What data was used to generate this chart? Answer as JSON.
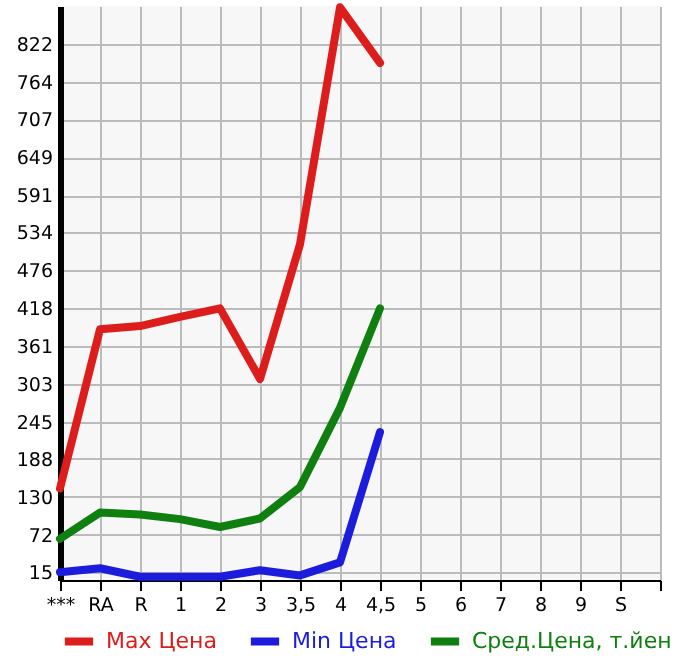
{
  "chart_data": {
    "type": "line",
    "categories": [
      "***",
      "RA",
      "R",
      "1",
      "2",
      "3",
      "3,5",
      "4",
      "4,5",
      "5",
      "6",
      "7",
      "8",
      "9",
      "S",
      null
    ],
    "series": [
      {
        "name": "Max Цена",
        "color": "#dd1c1c",
        "values": [
          143,
          386,
          391,
          405,
          418,
          310,
          516,
          878,
          793,
          null,
          null,
          null,
          null,
          null,
          null,
          null
        ]
      },
      {
        "name": "Min Цена",
        "color": "#1c1cdd",
        "values": [
          15,
          21,
          8,
          8,
          8,
          18,
          10,
          30,
          229,
          null,
          null,
          null,
          null,
          null,
          null,
          null
        ]
      },
      {
        "name": "Сред.Цена, т.йен",
        "color": "#0f7f0f",
        "values": [
          66,
          106,
          103,
          96,
          84,
          97,
          145,
          266,
          418,
          null,
          null,
          null,
          null,
          null,
          null,
          null
        ]
      }
    ],
    "ylim": [
      3,
      880
    ],
    "yticks": [
      15,
      72,
      130,
      188,
      245,
      303,
      361,
      418,
      476,
      534,
      591,
      649,
      707,
      764,
      822
    ],
    "grid": true,
    "legend": "bottom",
    "marker": "none",
    "line_style": "solid"
  }
}
